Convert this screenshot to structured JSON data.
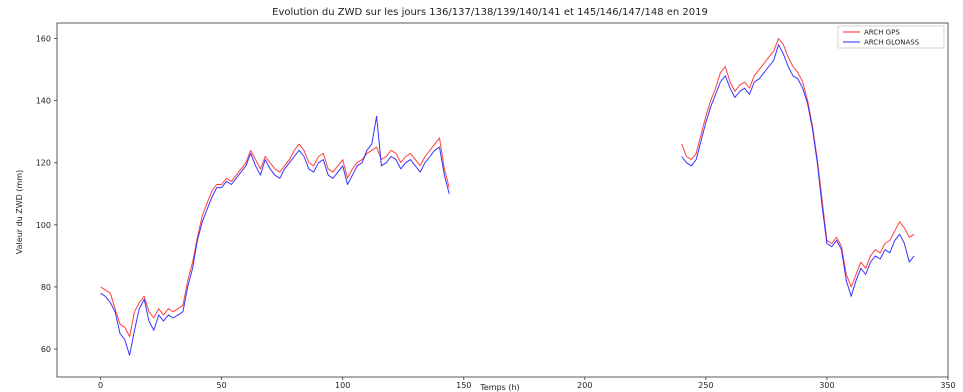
{
  "chart_data": {
    "type": "line",
    "title": "Evolution du ZWD sur les jours 136/137/138/139/140/141 et 145/146/147/148 en 2019",
    "xlabel": "Temps (h)",
    "ylabel": "Valeur du ZWD (mm)",
    "xlim": [
      -18,
      350
    ],
    "ylim": [
      51,
      165
    ],
    "xticks": [
      0,
      50,
      100,
      150,
      200,
      250,
      300,
      350
    ],
    "yticks": [
      60,
      80,
      100,
      120,
      140,
      160
    ],
    "legend_position": "top-right",
    "grid": false,
    "series": [
      {
        "name": "ARCH GPS",
        "color": "#ff2a2a",
        "segments": [
          [
            [
              0,
              80
            ],
            [
              2,
              79
            ],
            [
              4,
              78
            ],
            [
              6,
              73
            ],
            [
              8,
              68
            ],
            [
              10,
              67
            ],
            [
              12,
              64
            ],
            [
              14,
              72
            ],
            [
              16,
              75
            ],
            [
              18,
              77
            ],
            [
              20,
              72
            ],
            [
              22,
              70
            ],
            [
              24,
              73
            ],
            [
              26,
              71
            ],
            [
              28,
              73
            ],
            [
              30,
              72
            ],
            [
              32,
              73
            ],
            [
              34,
              74
            ],
            [
              36,
              82
            ],
            [
              38,
              88
            ],
            [
              40,
              96
            ],
            [
              42,
              103
            ],
            [
              44,
              107
            ],
            [
              46,
              111
            ],
            [
              48,
              113
            ],
            [
              50,
              113
            ],
            [
              52,
              115
            ],
            [
              54,
              114
            ],
            [
              56,
              116
            ],
            [
              58,
              118
            ],
            [
              60,
              120
            ],
            [
              62,
              124
            ],
            [
              64,
              121
            ],
            [
              66,
              118
            ],
            [
              68,
              122
            ],
            [
              70,
              120
            ],
            [
              72,
              118
            ],
            [
              74,
              117
            ],
            [
              76,
              119
            ],
            [
              78,
              121
            ],
            [
              80,
              124
            ],
            [
              82,
              126
            ],
            [
              84,
              124
            ],
            [
              86,
              120
            ],
            [
              88,
              119
            ],
            [
              90,
              122
            ],
            [
              92,
              123
            ],
            [
              94,
              118
            ],
            [
              96,
              117
            ],
            [
              98,
              119
            ],
            [
              100,
              121
            ],
            [
              102,
              115
            ],
            [
              104,
              118
            ],
            [
              106,
              120
            ],
            [
              108,
              121
            ],
            [
              110,
              123
            ],
            [
              112,
              124
            ],
            [
              114,
              125
            ],
            [
              116,
              121
            ],
            [
              118,
              122
            ],
            [
              120,
              124
            ],
            [
              122,
              123
            ],
            [
              124,
              120
            ],
            [
              126,
              122
            ],
            [
              128,
              123
            ],
            [
              130,
              121
            ],
            [
              132,
              119
            ],
            [
              134,
              122
            ],
            [
              136,
              124
            ],
            [
              138,
              126
            ],
            [
              140,
              128
            ],
            [
              142,
              118
            ],
            [
              144,
              112
            ]
          ],
          [
            [
              240,
              126
            ],
            [
              242,
              122
            ],
            [
              244,
              121
            ],
            [
              246,
              123
            ],
            [
              248,
              129
            ],
            [
              250,
              135
            ],
            [
              252,
              140
            ],
            [
              254,
              144
            ],
            [
              256,
              149
            ],
            [
              258,
              151
            ],
            [
              260,
              146
            ],
            [
              262,
              143
            ],
            [
              264,
              145
            ],
            [
              266,
              146
            ],
            [
              268,
              144
            ],
            [
              270,
              148
            ],
            [
              272,
              150
            ],
            [
              274,
              152
            ],
            [
              276,
              154
            ],
            [
              278,
              156
            ],
            [
              280,
              160
            ],
            [
              282,
              158
            ],
            [
              284,
              154
            ],
            [
              286,
              151
            ],
            [
              288,
              149
            ],
            [
              290,
              146
            ],
            [
              292,
              140
            ],
            [
              294,
              132
            ],
            [
              296,
              121
            ],
            [
              298,
              108
            ],
            [
              300,
              95
            ],
            [
              302,
              94
            ],
            [
              304,
              96
            ],
            [
              306,
              93
            ],
            [
              308,
              84
            ],
            [
              310,
              80
            ],
            [
              312,
              84
            ],
            [
              314,
              88
            ],
            [
              316,
              86
            ],
            [
              318,
              90
            ],
            [
              320,
              92
            ],
            [
              322,
              91
            ],
            [
              324,
              94
            ],
            [
              326,
              95
            ],
            [
              328,
              98
            ],
            [
              330,
              101
            ],
            [
              332,
              99
            ],
            [
              334,
              96
            ],
            [
              336,
              97
            ]
          ]
        ]
      },
      {
        "name": "ARCH GLONASS",
        "color": "#2a2aff",
        "segments": [
          [
            [
              0,
              78
            ],
            [
              2,
              77
            ],
            [
              4,
              75
            ],
            [
              6,
              72
            ],
            [
              8,
              65
            ],
            [
              10,
              63
            ],
            [
              12,
              58
            ],
            [
              14,
              66
            ],
            [
              16,
              73
            ],
            [
              18,
              76
            ],
            [
              20,
              69
            ],
            [
              22,
              66
            ],
            [
              24,
              71
            ],
            [
              26,
              69
            ],
            [
              28,
              71
            ],
            [
              30,
              70
            ],
            [
              32,
              71
            ],
            [
              34,
              72
            ],
            [
              36,
              80
            ],
            [
              38,
              86
            ],
            [
              40,
              95
            ],
            [
              42,
              101
            ],
            [
              44,
              105
            ],
            [
              46,
              109
            ],
            [
              48,
              112
            ],
            [
              50,
              112
            ],
            [
              52,
              114
            ],
            [
              54,
              113
            ],
            [
              56,
              115
            ],
            [
              58,
              117
            ],
            [
              60,
              119
            ],
            [
              62,
              123
            ],
            [
              64,
              119
            ],
            [
              66,
              116
            ],
            [
              68,
              121
            ],
            [
              70,
              118
            ],
            [
              72,
              116
            ],
            [
              74,
              115
            ],
            [
              76,
              118
            ],
            [
              78,
              120
            ],
            [
              80,
              122
            ],
            [
              82,
              124
            ],
            [
              84,
              122
            ],
            [
              86,
              118
            ],
            [
              88,
              117
            ],
            [
              90,
              120
            ],
            [
              92,
              121
            ],
            [
              94,
              116
            ],
            [
              96,
              115
            ],
            [
              98,
              117
            ],
            [
              100,
              119
            ],
            [
              102,
              113
            ],
            [
              104,
              116
            ],
            [
              106,
              119
            ],
            [
              108,
              120
            ],
            [
              110,
              124
            ],
            [
              112,
              126
            ],
            [
              114,
              135
            ],
            [
              116,
              119
            ],
            [
              118,
              120
            ],
            [
              120,
              122
            ],
            [
              122,
              121
            ],
            [
              124,
              118
            ],
            [
              126,
              120
            ],
            [
              128,
              121
            ],
            [
              130,
              119
            ],
            [
              132,
              117
            ],
            [
              134,
              120
            ],
            [
              136,
              122
            ],
            [
              138,
              124
            ],
            [
              140,
              125
            ],
            [
              142,
              116
            ],
            [
              144,
              110
            ]
          ],
          [
            [
              240,
              122
            ],
            [
              242,
              120
            ],
            [
              244,
              119
            ],
            [
              246,
              121
            ],
            [
              248,
              127
            ],
            [
              250,
              133
            ],
            [
              252,
              138
            ],
            [
              254,
              142
            ],
            [
              256,
              146
            ],
            [
              258,
              148
            ],
            [
              260,
              144
            ],
            [
              262,
              141
            ],
            [
              264,
              143
            ],
            [
              266,
              144
            ],
            [
              268,
              142
            ],
            [
              270,
              146
            ],
            [
              272,
              147
            ],
            [
              274,
              149
            ],
            [
              276,
              151
            ],
            [
              278,
              153
            ],
            [
              280,
              158
            ],
            [
              282,
              155
            ],
            [
              284,
              151
            ],
            [
              286,
              148
            ],
            [
              288,
              147
            ],
            [
              290,
              144
            ],
            [
              292,
              139
            ],
            [
              294,
              131
            ],
            [
              296,
              120
            ],
            [
              298,
              106
            ],
            [
              300,
              94
            ],
            [
              302,
              93
            ],
            [
              304,
              95
            ],
            [
              306,
              92
            ],
            [
              308,
              82
            ],
            [
              310,
              77
            ],
            [
              312,
              82
            ],
            [
              314,
              86
            ],
            [
              316,
              84
            ],
            [
              318,
              88
            ],
            [
              320,
              90
            ],
            [
              322,
              89
            ],
            [
              324,
              92
            ],
            [
              326,
              91
            ],
            [
              328,
              95
            ],
            [
              330,
              97
            ],
            [
              332,
              94
            ],
            [
              334,
              88
            ],
            [
              336,
              90
            ]
          ]
        ]
      }
    ]
  }
}
